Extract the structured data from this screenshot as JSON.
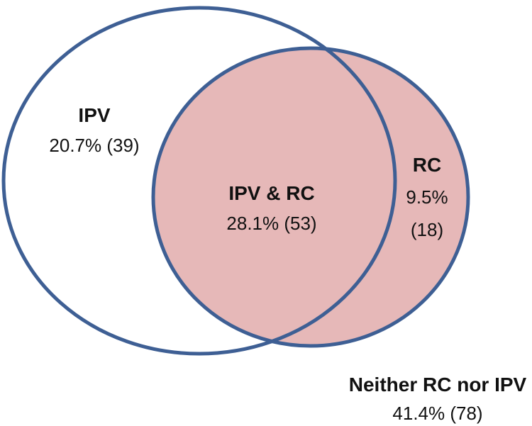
{
  "colors": {
    "outline": "#3E5F94",
    "rc_fill": "#E6B8B8",
    "ipv_fill": "#FFFFFF",
    "background": "#FFFFFF",
    "text": "#111111"
  },
  "regions": {
    "ipv_only": {
      "title": "IPV",
      "value": "20.7% (39)"
    },
    "overlap": {
      "title": "IPV & RC",
      "value": "28.1% (53)"
    },
    "rc_only": {
      "title": "RC",
      "value_line1": "9.5%",
      "value_line2": "(18)"
    },
    "neither": {
      "title": "Neither RC nor IPV",
      "value": "41.4% (78)"
    }
  }
}
